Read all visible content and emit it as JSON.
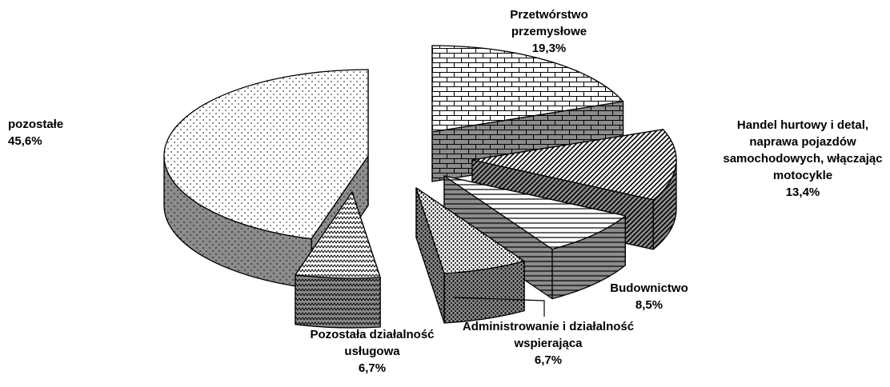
{
  "chart_data": {
    "type": "pie3d",
    "categories": [
      "Przetwórstwo przemysłowe",
      "Handel hurtowy i detal, naprawa pojazdów samochodowych, włączając motocykle",
      "Budownictwo",
      "Administrowanie i działalność wspierająca",
      "Pozostała działalność usługowa",
      "pozostałe"
    ],
    "values": [
      19.3,
      13.4,
      8.5,
      6.7,
      6.7,
      45.6
    ],
    "value_labels": [
      "19,3%",
      "13,4%",
      "8,5%",
      "6,7%",
      "6,7%",
      "45,6%"
    ]
  }
}
